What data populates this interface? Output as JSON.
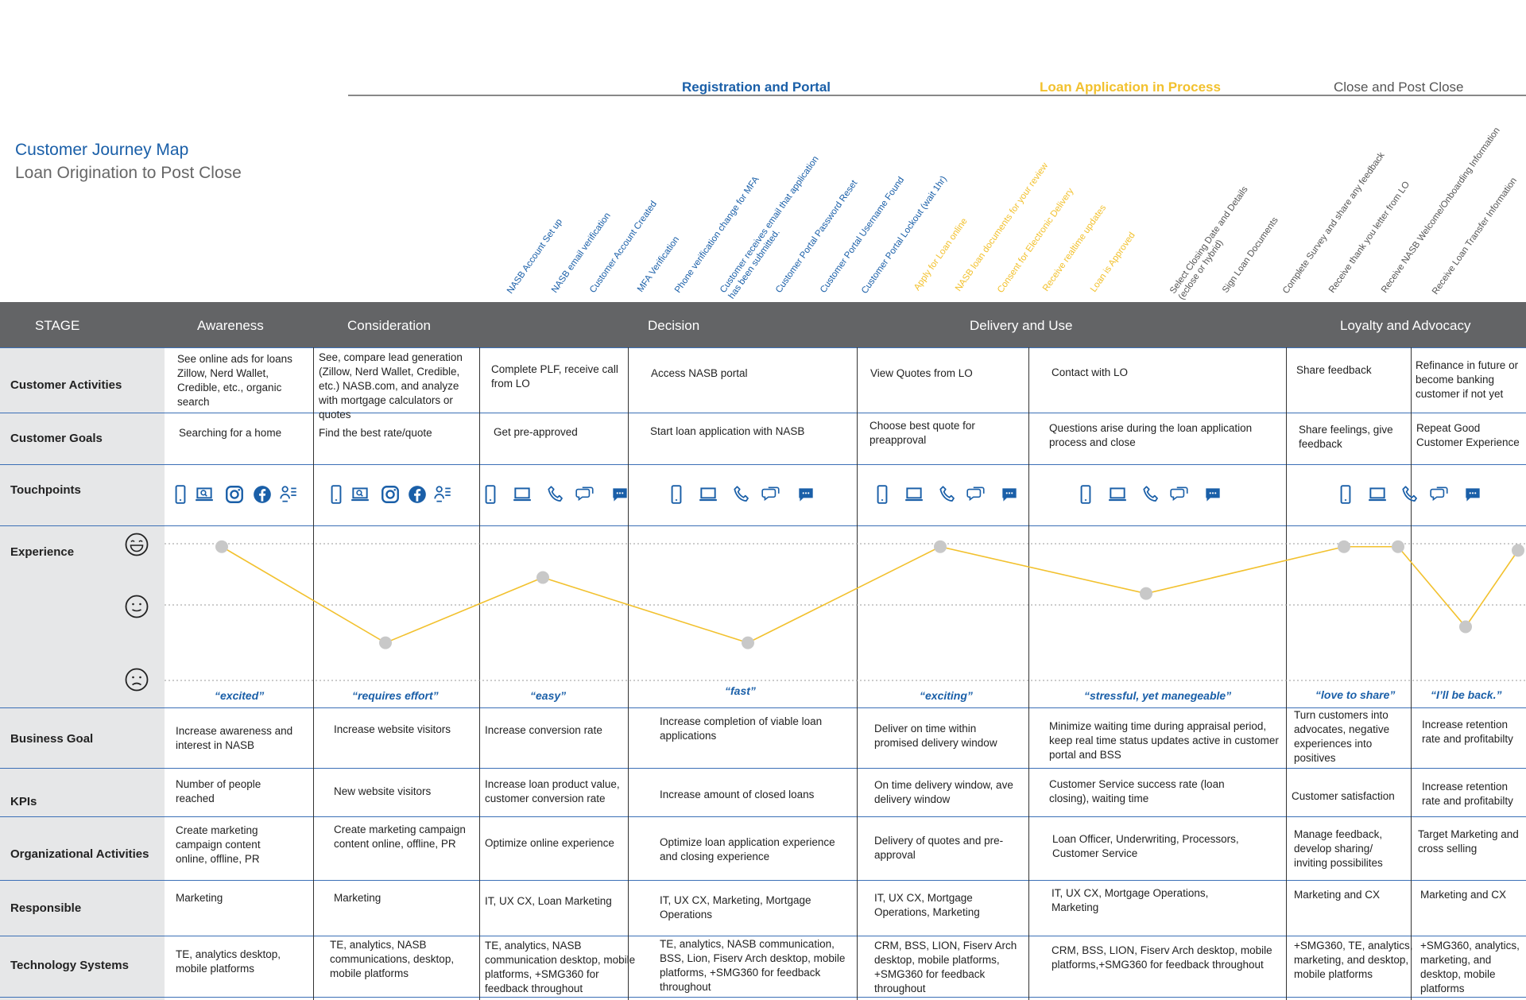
{
  "header": {
    "title": "Customer Journey Map",
    "subtitle": "Loan Origination to Post Close"
  },
  "phases": [
    {
      "label": "Registration and Portal"
    },
    {
      "label": "Loan Application in Process"
    },
    {
      "label": "Close and Post Close"
    }
  ],
  "steps": [
    {
      "label": "NASB Account Set up"
    },
    {
      "label": "NASB email verification"
    },
    {
      "label": "Customer Account Created"
    },
    {
      "label": "MFA  Verification"
    },
    {
      "label": "Phone verification change for MFA"
    },
    {
      "label": "Customer receives email that application\nhas been submitted."
    },
    {
      "label": "Customer Portal Password Reset"
    },
    {
      "label": "Customer Portal Username Found"
    },
    {
      "label": "Customer Portal Lockout (wait 1hr)"
    },
    {
      "label": "Apply for Loan online"
    },
    {
      "label": "NASB loan documents for your review"
    },
    {
      "label": "Consent for Electronic Delivery"
    },
    {
      "label": "Receive realtime updates"
    },
    {
      "label": "Loan is Approved"
    },
    {
      "label": "Select Closing Date and Details\n(eclose or hybrid)"
    },
    {
      "label": "Sign Loan Documents"
    },
    {
      "label": "Complete Survey and share any feedback"
    },
    {
      "label": "Receive thank you letter from LO"
    },
    {
      "label": "Receive NASB Welcome/Onboarding Information"
    },
    {
      "label": "Receive Loan Transfer Information"
    }
  ],
  "stages": {
    "header": "STAGE",
    "items": [
      "Awareness",
      "Consideration",
      "Decision",
      "Delivery and Use",
      "Loyalty and Advocacy"
    ]
  },
  "rows": {
    "customer_activities": "Customer Activities",
    "customer_goals": "Customer Goals",
    "touchpoints": "Touchpoints",
    "experience": "Experience",
    "business_goal": "Business Goal",
    "kpis": "KPIs",
    "organizational_activities": "Organizational Activities",
    "responsible": "Responsible",
    "technology_systems": "Technology Systems"
  },
  "columns": [
    {
      "activities": "See online ads for loans Zillow, Nerd Wallet, Credible, etc., organic search",
      "goals": "Searching for a home",
      "emotion": "“excited”",
      "business_goal": "Increase awareness and interest in NASB",
      "kpis": "Number of people reached",
      "org": "Create marketing campaign content online, offline, PR",
      "responsible": "Marketing",
      "tech": "TE, analytics desktop, mobile platforms"
    },
    {
      "activities": "See, compare lead generation (Zillow, Nerd Wallet, Credible, etc.) NASB.com, and analyze with mortgage calculators or quotes",
      "goals": "Find the best rate/quote",
      "emotion": "“requires effort”",
      "business_goal": "Increase website visitors",
      "kpis": "New website visitors",
      "org": "Create marketing campaign content online, offline, PR",
      "responsible": "Marketing",
      "tech": "TE, analytics, NASB communications, desktop, mobile platforms"
    },
    {
      "activities": "Complete PLF, receive call from LO",
      "goals": "Get pre-approved",
      "emotion": "“easy”",
      "business_goal": "Increase conversion rate",
      "kpis": "Increase loan product value, customer conversion rate",
      "org": "Optimize online experience",
      "responsible": "IT, UX CX, Loan Marketing",
      "tech": "TE, analytics, NASB communication desktop, mobile platforms, +SMG360 for feedback throughout"
    },
    {
      "activities": "Access NASB portal",
      "goals": "Start loan application with NASB",
      "emotion": "“fast”",
      "business_goal": "Increase completion of viable loan applications",
      "kpis": "Increase amount of closed loans",
      "org": "Optimize loan application experience and closing experience",
      "responsible": "IT, UX CX, Marketing, Mortgage Operations",
      "tech": "TE, analytics, NASB communication, BSS, Lion, Fiserv Arch desktop, mobile platforms, +SMG360 for feedback throughout"
    },
    {
      "activities": "View Quotes from LO",
      "goals": "Choose best quote for preapproval",
      "emotion": "“exciting”",
      "business_goal": "Deliver on time within promised delivery window",
      "kpis": "On time delivery window, ave delivery window",
      "org": "Delivery of quotes and pre-approval",
      "responsible": "IT, UX CX, Mortgage Operations,  Marketing",
      "tech": "CRM, BSS, LION, Fiserv Arch desktop, mobile platforms, +SMG360 for feedback throughout"
    },
    {
      "activities": "Contact with LO",
      "goals": "Questions arise during the loan application process and close",
      "emotion": "“stressful, yet manegeable”",
      "business_goal": "Minimize waiting time during appraisal period, keep real time status updates active in customer portal and BSS",
      "kpis": "Customer Service success rate (loan closing), waiting time",
      "org": "Loan Officer, Underwriting, Processors, Customer Service",
      "responsible": "IT, UX CX, Mortgage Operations, Marketing",
      "tech": "CRM, BSS, LION, Fiserv Arch desktop, mobile platforms,+SMG360 for feedback throughout"
    },
    {
      "activities": "Share feedback",
      "goals": "Share feelings, give feedback",
      "emotion": "“love to share”",
      "business_goal": "Turn customers into advocates, negative experiences into positives",
      "kpis": "Customer satisfaction",
      "org": "Manage feedback, develop sharing/ inviting possibilites",
      "responsible": "Marketing and CX",
      "tech": "+SMG360, TE, analytics, marketing, and desktop, mobile platforms"
    },
    {
      "activities": "Refinance in future or become banking customer if not yet",
      "goals": "Repeat Good Customer Experience",
      "emotion": "“I’ll be back.”",
      "business_goal": "Increase retention rate and profitabilty",
      "kpis": "Increase retention rate and profitabilty",
      "org": "Target Marketing and cross selling",
      "responsible": "Marketing and CX",
      "tech": "+SMG360, analytics, marketing, and desktop, mobile platforms"
    }
  ],
  "experience_chart": {
    "type": "line",
    "levels": [
      "happy",
      "neutral",
      "sad"
    ],
    "scores": [
      0.95,
      0.17,
      0.7,
      0.17,
      0.95,
      0.57,
      0.95,
      0.95,
      0.3,
      0.92
    ],
    "color": "#f2c12e",
    "point_color": "#c8c8c8"
  },
  "colors": {
    "accent_blue": "#1a5fa8",
    "accent_yellow": "#f2c12e",
    "stage_bar": "#636466",
    "label_bg": "#e6e7e8"
  }
}
